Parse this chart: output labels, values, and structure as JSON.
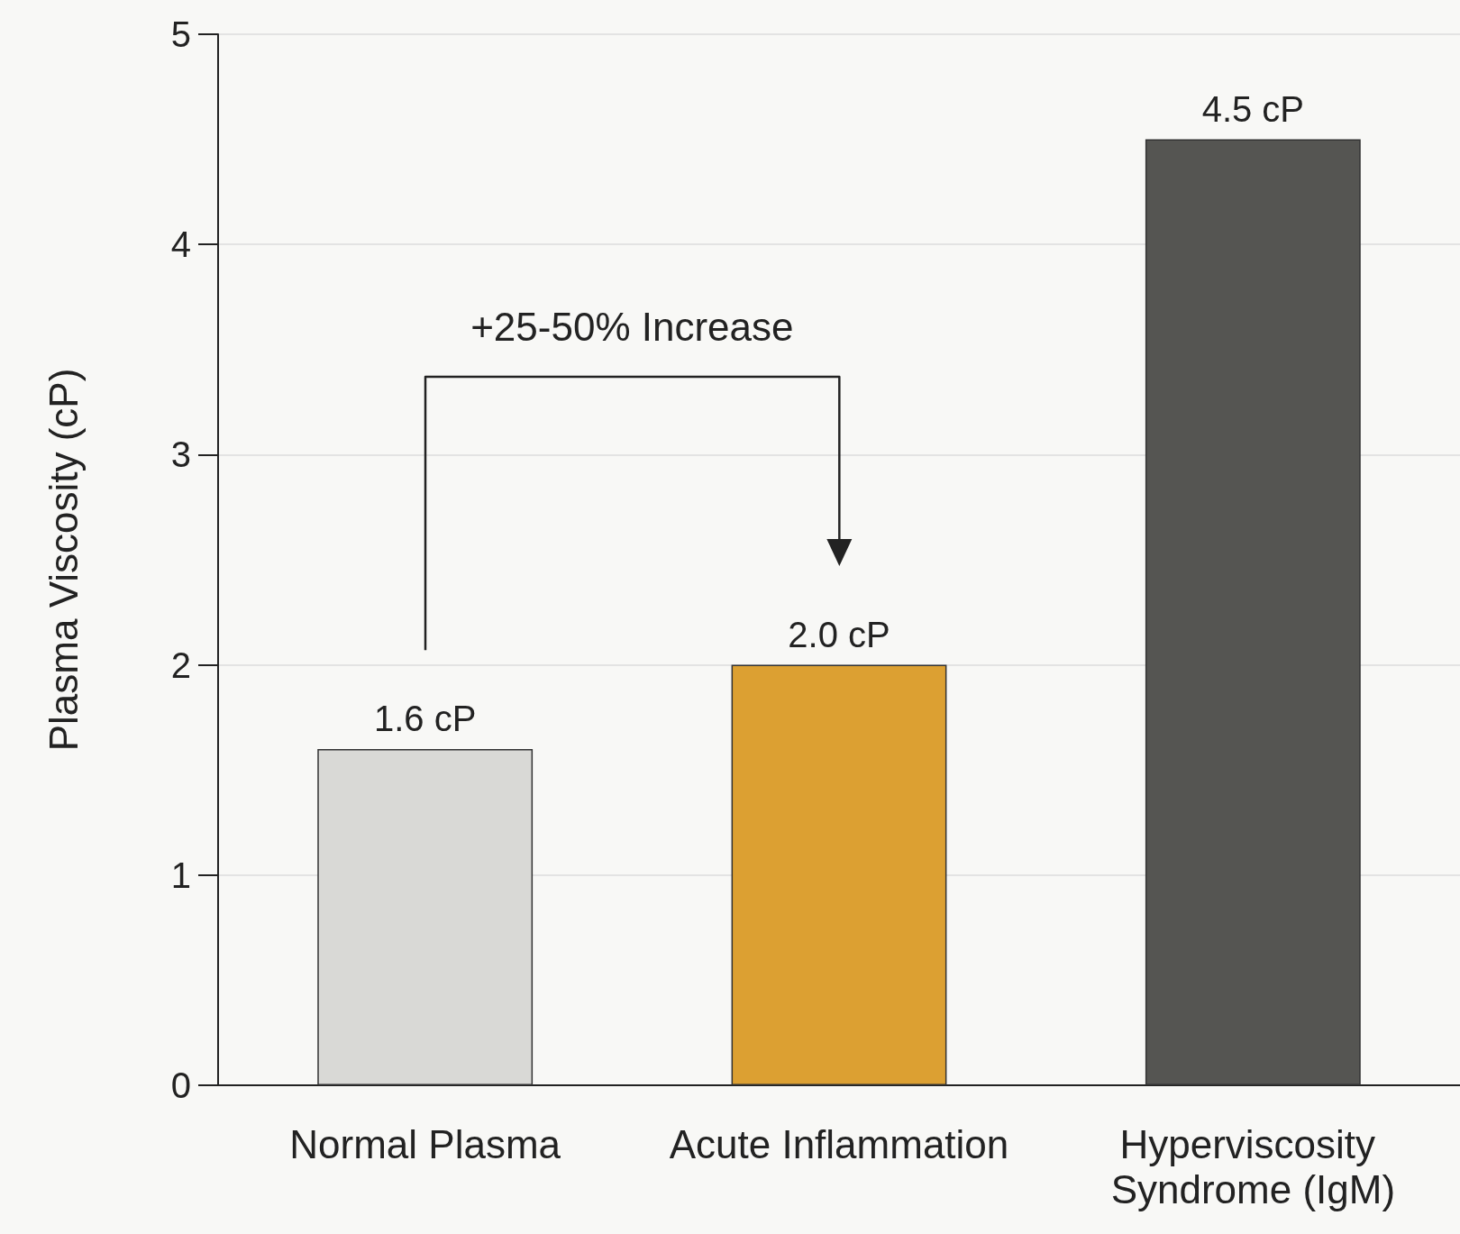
{
  "chart_data": {
    "type": "bar",
    "ylabel": "Plasma Viscosity (cP)",
    "categories": [
      "Normal Plasma",
      "Acute Inflammation",
      "Hyperviscosity Syndrome (IgM)"
    ],
    "values": [
      1.6,
      2.0,
      4.5
    ],
    "colors": [
      "#d9d9d6",
      "#dca032",
      "#555552"
    ],
    "value_labels": [
      "1.6 cP",
      "2.0 cP",
      "4.5 cP"
    ],
    "ylim": [
      0,
      5
    ],
    "yticks": [
      0,
      1,
      2,
      3,
      4,
      5
    ],
    "grid": "y",
    "annotations": [
      "+25-50% Increase"
    ]
  }
}
